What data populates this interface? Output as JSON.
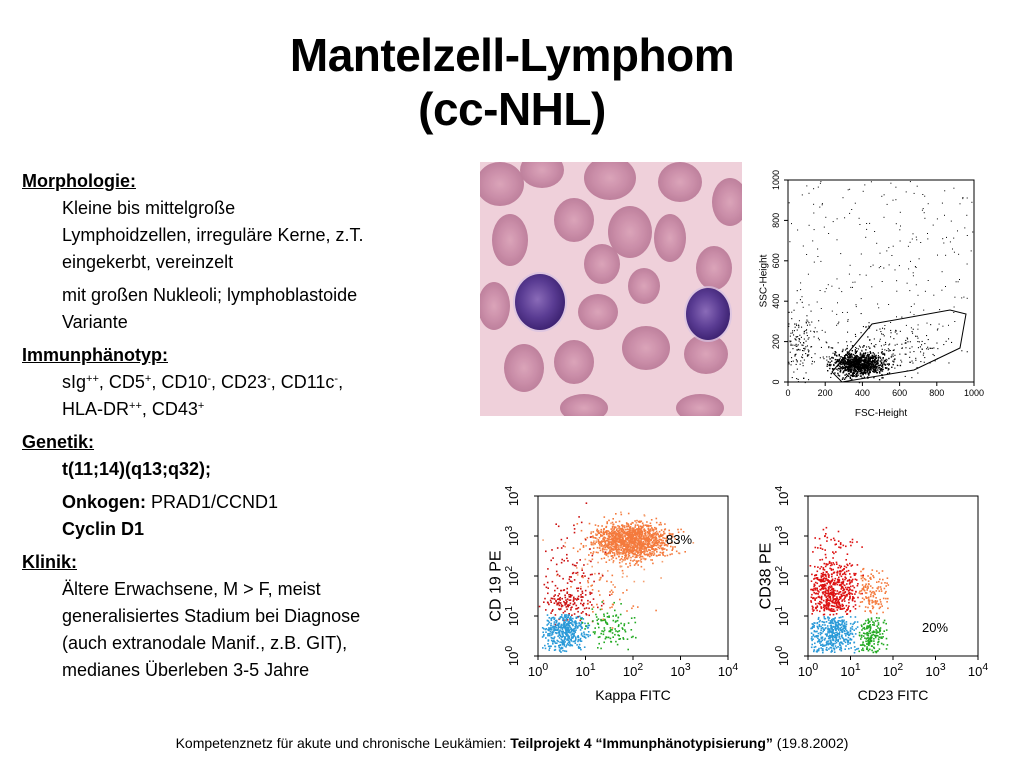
{
  "title": {
    "line1": "Mantelzell-Lymphom",
    "line2": "(cc-NHL)"
  },
  "morphologie": {
    "heading": "Morphologie:",
    "item1_l1": "Kleine bis mittelgroße",
    "item1_l2": "Lymphoidzellen, irreguläre Kerne, z.T.",
    "item1_l3": "eingekerbt, vereinzelt",
    "item2_l1": "mit großen Nukleoli; lymphoblastoide",
    "item2_l2": "Variante"
  },
  "immun": {
    "heading": "Immunphänotyp:",
    "l1": {
      "sig": "sIg",
      "sig_sup": "++",
      "cd5": ", CD5",
      "cd5_sup": "+",
      "cd10": ", CD10",
      "cd10_sup": "-",
      "cd23": ", CD23",
      "cd23_sup": "-",
      "cd11c": ", CD11c",
      "cd11c_sup": "-",
      "tail": ","
    },
    "l2": {
      "hla": "HLA-DR",
      "hla_sup": "++",
      "cd43": ", CD43",
      "cd43_sup": "+"
    }
  },
  "genetik": {
    "heading": "Genetik:",
    "translocation": "t(11;14)(q13;q32);",
    "onkogen_label": "Onkogen:",
    "onkogen_value": " PRAD1/CCND1",
    "cyclin": "Cyclin D1"
  },
  "klinik": {
    "heading": "Klinik:",
    "l1": "Ältere Erwachsene, M > F, meist",
    "l2": "generalisiertes Stadium bei Diagnose",
    "l3": "(auch extranodale Manif., z.B. GIT),",
    "l4": "medianes Überleben 3-5 Jahre"
  },
  "scatter": {
    "ylabel": "SSC-Height",
    "xlabel": "FSC-Height",
    "ticks": [
      "0",
      "200",
      "400",
      "600",
      "800",
      "1000"
    ]
  },
  "flow1": {
    "ylabel": "CD 19 PE",
    "xlabel": "Kappa FITC",
    "percent": "83%",
    "tick_base": "10",
    "exps": [
      "0",
      "1",
      "2",
      "3",
      "4"
    ]
  },
  "flow2": {
    "ylabel": "CD38 PE",
    "xlabel": "CD23 FITC",
    "percent": "20%",
    "tick_base": "10",
    "exps": [
      "0",
      "1",
      "2",
      "3",
      "4"
    ]
  },
  "footer": {
    "prefix": "Kompetenznetz für akute und chronische Leukämien: ",
    "project": "Teilprojekt 4 “Immunphänotypisierung”",
    "date": " (19.8.2002)"
  }
}
